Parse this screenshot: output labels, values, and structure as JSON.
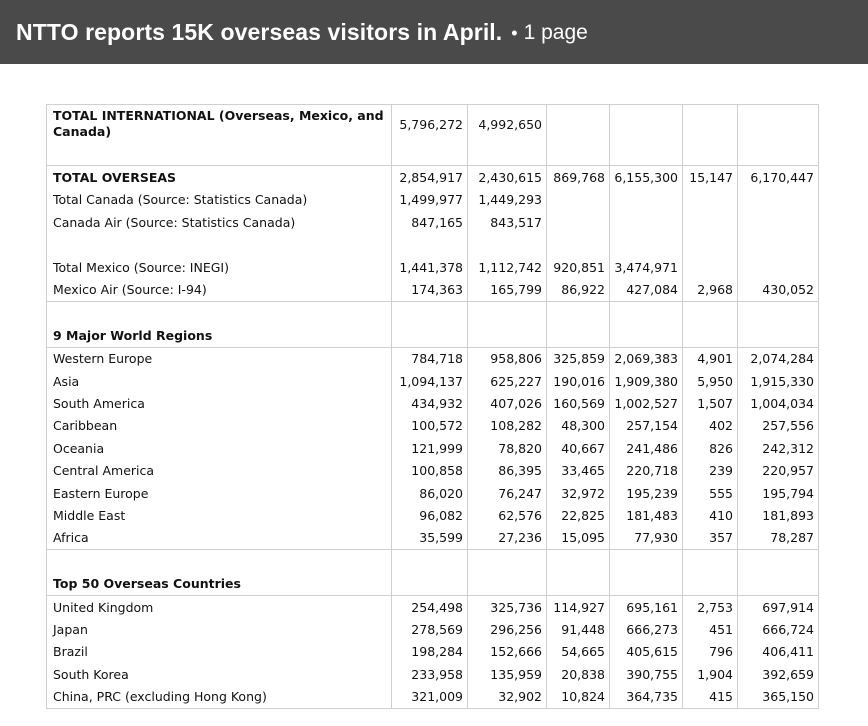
{
  "header": {
    "title": "NTTO reports 15K overseas visitors in April.",
    "separator": "•",
    "pages": "1 page"
  },
  "table": {
    "rows": [
      {
        "kind": "tall",
        "bold": true,
        "label": "TOTAL INTERNATIONAL (Overseas, Mexico, and Canada)",
        "cells": [
          "5,796,272",
          "4,992,650",
          "",
          "",
          "",
          ""
        ]
      },
      {
        "kind": "blank"
      },
      {
        "kind": "data",
        "bold": true,
        "label": "TOTAL OVERSEAS",
        "cells": [
          "2,854,917",
          "2,430,615",
          "869,768",
          "6,155,300",
          "15,147",
          "6,170,447"
        ],
        "topline": true
      },
      {
        "kind": "data",
        "label": "Total Canada (Source: Statistics Canada)",
        "cells": [
          "1,499,977",
          "1,449,293",
          "",
          "",
          "",
          ""
        ]
      },
      {
        "kind": "data",
        "label": "Canada Air (Source: Statistics Canada)",
        "cells": [
          "847,165",
          "843,517",
          "",
          "",
          "",
          ""
        ]
      },
      {
        "kind": "blank"
      },
      {
        "kind": "data",
        "label": "Total Mexico (Source: INEGI)",
        "cells": [
          "1,441,378",
          "1,112,742",
          "920,851",
          "3,474,971",
          "",
          ""
        ]
      },
      {
        "kind": "data",
        "label": "Mexico Air (Source: I-94)",
        "cells": [
          "174,363",
          "165,799",
          "86,922",
          "427,084",
          "2,968",
          "430,052"
        ]
      },
      {
        "kind": "blank",
        "topline": true
      },
      {
        "kind": "data",
        "bold": true,
        "label": "9 Major World Regions",
        "cells": [
          "",
          "",
          "",
          "",
          "",
          ""
        ]
      },
      {
        "kind": "data",
        "label": "Western Europe",
        "cells": [
          "784,718",
          "958,806",
          "325,859",
          "2,069,383",
          "4,901",
          "2,074,284"
        ],
        "topline": true
      },
      {
        "kind": "data",
        "label": "Asia",
        "cells": [
          "1,094,137",
          "625,227",
          "190,016",
          "1,909,380",
          "5,950",
          "1,915,330"
        ]
      },
      {
        "kind": "data",
        "label": "South America",
        "cells": [
          "434,932",
          "407,026",
          "160,569",
          "1,002,527",
          "1,507",
          "1,004,034"
        ]
      },
      {
        "kind": "data",
        "label": "Caribbean",
        "cells": [
          "100,572",
          "108,282",
          "48,300",
          "257,154",
          "402",
          "257,556"
        ]
      },
      {
        "kind": "data",
        "label": "Oceania",
        "cells": [
          "121,999",
          "78,820",
          "40,667",
          "241,486",
          "826",
          "242,312"
        ]
      },
      {
        "kind": "data",
        "label": "Central America",
        "cells": [
          "100,858",
          "86,395",
          "33,465",
          "220,718",
          "239",
          "220,957"
        ]
      },
      {
        "kind": "data",
        "label": "Eastern Europe",
        "cells": [
          "86,020",
          "76,247",
          "32,972",
          "195,239",
          "555",
          "195,794"
        ]
      },
      {
        "kind": "data",
        "label": "Middle East",
        "cells": [
          "96,082",
          "62,576",
          "22,825",
          "181,483",
          "410",
          "181,893"
        ]
      },
      {
        "kind": "data",
        "label": "Africa",
        "cells": [
          "35,599",
          "27,236",
          "15,095",
          "77,930",
          "357",
          "78,287"
        ]
      },
      {
        "kind": "blank",
        "topline": true
      },
      {
        "kind": "data",
        "bold": true,
        "label": "Top 50 Overseas Countries",
        "cells": [
          "",
          "",
          "",
          "",
          "",
          ""
        ]
      },
      {
        "kind": "data",
        "label": "United Kingdom",
        "cells": [
          "254,498",
          "325,736",
          "114,927",
          "695,161",
          "2,753",
          "697,914"
        ],
        "topline": true
      },
      {
        "kind": "data",
        "label": "Japan",
        "cells": [
          "278,569",
          "296,256",
          "91,448",
          "666,273",
          "451",
          "666,724"
        ]
      },
      {
        "kind": "data",
        "label": "Brazil",
        "cells": [
          "198,284",
          "152,666",
          "54,665",
          "405,615",
          "796",
          "406,411"
        ]
      },
      {
        "kind": "data",
        "label": "South Korea",
        "cells": [
          "233,958",
          "135,959",
          "20,838",
          "390,755",
          "1,904",
          "392,659"
        ]
      },
      {
        "kind": "data",
        "label": "China, PRC (excluding Hong Kong)",
        "cells": [
          "321,009",
          "32,902",
          "10,824",
          "364,735",
          "415",
          "365,150"
        ]
      }
    ]
  }
}
